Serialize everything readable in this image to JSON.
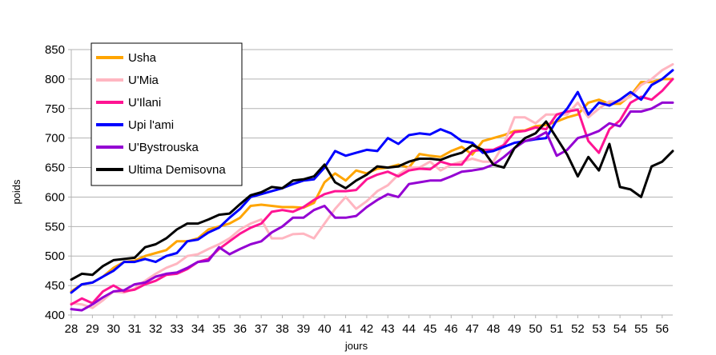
{
  "chart_data": {
    "type": "line",
    "title": "",
    "xlabel": "jours",
    "ylabel": "poids",
    "xlim": [
      28,
      56.5
    ],
    "ylim": [
      400,
      850
    ],
    "x_ticks": [
      28,
      29,
      30,
      31,
      32,
      33,
      34,
      35,
      36,
      37,
      38,
      39,
      40,
      41,
      42,
      43,
      44,
      45,
      46,
      47,
      48,
      49,
      50,
      51,
      52,
      53,
      54,
      55,
      56
    ],
    "y_ticks": [
      400,
      450,
      500,
      550,
      600,
      650,
      700,
      750,
      800,
      850
    ],
    "grid": "horizontal",
    "legend_position": "top-left",
    "x": [
      28,
      28.5,
      29,
      29.5,
      30,
      30.5,
      31,
      31.5,
      32,
      32.5,
      33,
      33.5,
      34,
      34.5,
      35,
      35.5,
      36,
      36.5,
      37,
      37.5,
      38,
      38.5,
      39,
      39.5,
      40,
      40.5,
      41,
      41.5,
      42,
      42.5,
      43,
      43.5,
      44,
      44.5,
      45,
      45.5,
      46,
      46.5,
      47,
      47.5,
      48,
      48.5,
      49,
      49.5,
      50,
      50.5,
      51,
      51.5,
      52,
      52.5,
      53,
      53.5,
      54,
      54.5,
      55,
      55.5,
      56,
      56.5
    ],
    "series": [
      {
        "name": "Usha",
        "color": "#ffa500",
        "values": [
          440,
          452,
          455,
          465,
          480,
          490,
          492,
          500,
          505,
          510,
          525,
          525,
          530,
          545,
          550,
          555,
          565,
          585,
          587,
          585,
          583,
          583,
          582,
          590,
          625,
          640,
          628,
          645,
          640,
          648,
          650,
          655,
          650,
          673,
          670,
          668,
          678,
          685,
          672,
          695,
          700,
          705,
          712,
          713,
          720,
          722,
          728,
          735,
          740,
          760,
          765,
          758,
          758,
          772,
          795,
          795,
          800,
          800
        ]
      },
      {
        "name": "U'Mia",
        "color": "#ffb6c1",
        "values": [
          420,
          418,
          412,
          425,
          440,
          438,
          445,
          458,
          470,
          480,
          487,
          500,
          503,
          512,
          520,
          530,
          545,
          555,
          562,
          530,
          530,
          537,
          538,
          530,
          555,
          580,
          600,
          580,
          593,
          610,
          620,
          638,
          650,
          650,
          660,
          645,
          655,
          660,
          665,
          660,
          660,
          690,
          735,
          735,
          725,
          740,
          740,
          740,
          760,
          735,
          750,
          762,
          762,
          770,
          790,
          800,
          815,
          825
        ]
      },
      {
        "name": "U'Ilani",
        "color": "#ff1493",
        "values": [
          418,
          428,
          420,
          440,
          450,
          440,
          443,
          452,
          458,
          468,
          470,
          478,
          490,
          495,
          512,
          525,
          538,
          548,
          555,
          575,
          578,
          575,
          583,
          595,
          605,
          610,
          610,
          612,
          630,
          638,
          643,
          635,
          645,
          648,
          647,
          660,
          655,
          655,
          678,
          680,
          680,
          688,
          710,
          712,
          718,
          715,
          740,
          745,
          748,
          695,
          675,
          715,
          730,
          760,
          770,
          765,
          780,
          800
        ]
      },
      {
        "name": "Upi l'ami",
        "color": "#0000ff",
        "values": [
          438,
          452,
          455,
          465,
          475,
          490,
          490,
          495,
          490,
          500,
          505,
          525,
          528,
          540,
          548,
          565,
          580,
          600,
          605,
          610,
          615,
          622,
          628,
          630,
          650,
          678,
          670,
          675,
          680,
          678,
          700,
          690,
          705,
          708,
          706,
          715,
          708,
          695,
          692,
          675,
          678,
          685,
          692,
          695,
          698,
          700,
          730,
          750,
          778,
          740,
          760,
          755,
          765,
          778,
          765,
          790,
          800,
          815
        ]
      },
      {
        "name": "U'Bystrouska",
        "color": "#9400d3",
        "values": [
          410,
          408,
          418,
          430,
          440,
          442,
          452,
          455,
          465,
          470,
          472,
          480,
          490,
          492,
          515,
          503,
          512,
          520,
          525,
          540,
          550,
          565,
          565,
          578,
          585,
          565,
          565,
          568,
          583,
          595,
          605,
          600,
          622,
          625,
          628,
          628,
          635,
          643,
          645,
          648,
          655,
          668,
          683,
          695,
          700,
          710,
          670,
          680,
          700,
          705,
          712,
          725,
          720,
          745,
          745,
          750,
          760,
          760
        ]
      },
      {
        "name": "Ultima Demisovna",
        "color": "#000000",
        "values": [
          460,
          470,
          468,
          483,
          493,
          495,
          497,
          515,
          520,
          530,
          545,
          555,
          555,
          562,
          570,
          572,
          588,
          603,
          608,
          617,
          615,
          628,
          630,
          635,
          655,
          625,
          615,
          628,
          638,
          652,
          650,
          652,
          660,
          665,
          665,
          663,
          670,
          675,
          688,
          680,
          655,
          650,
          683,
          700,
          708,
          728,
          700,
          672,
          635,
          668,
          645,
          690,
          617,
          613,
          600,
          652,
          660,
          678
        ]
      }
    ]
  }
}
